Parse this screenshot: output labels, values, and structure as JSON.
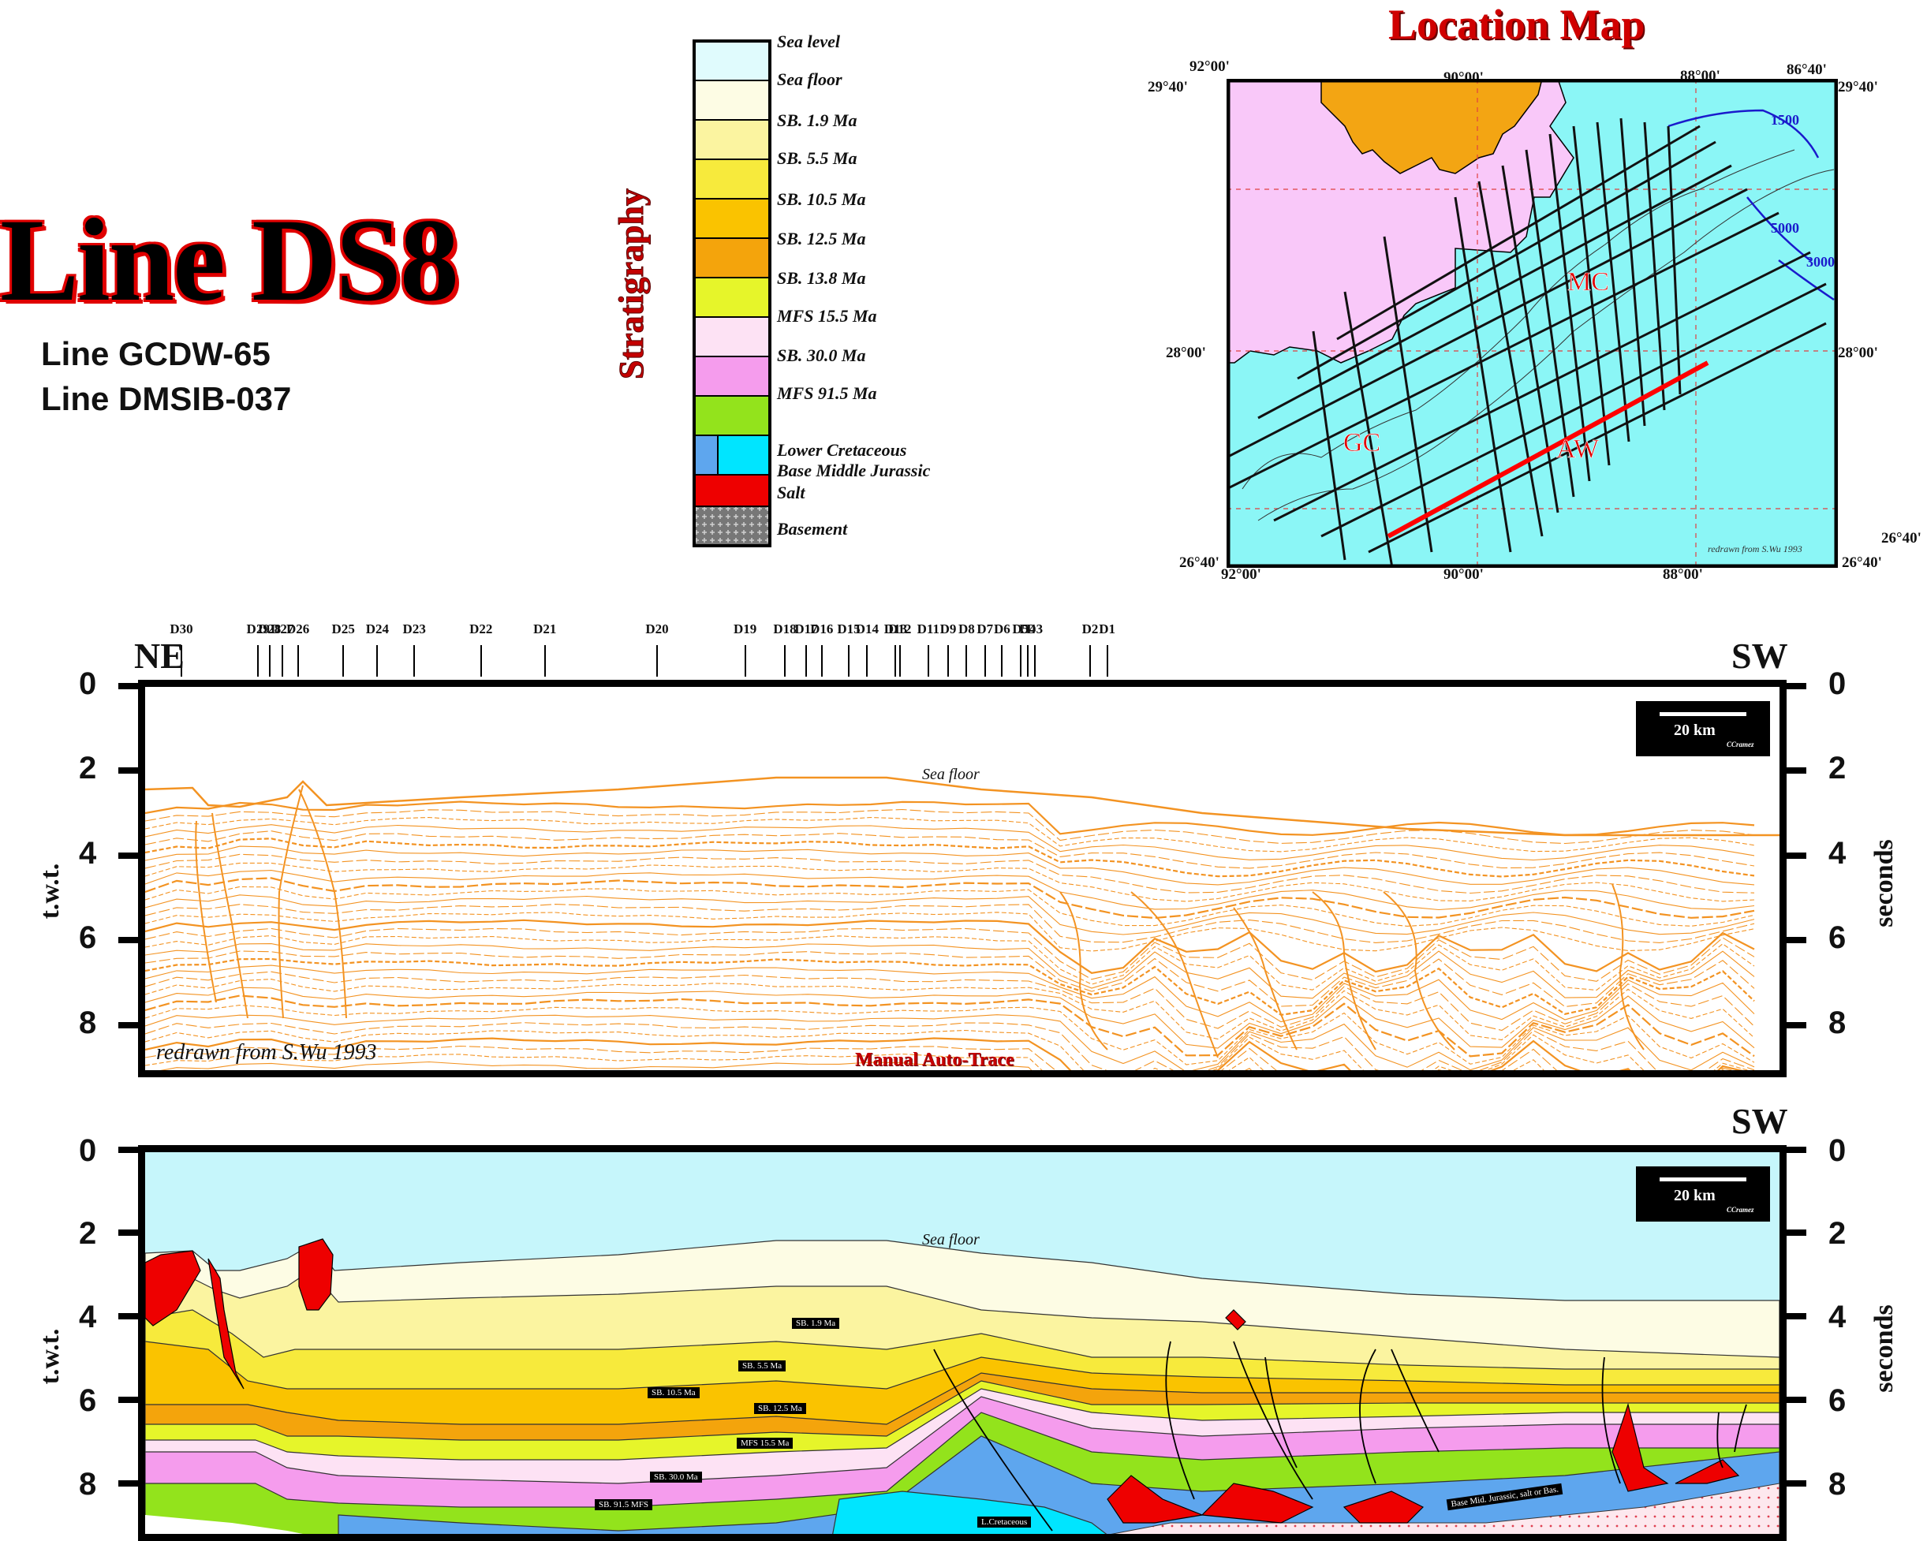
{
  "title": "Line DS8",
  "subtitles": [
    "Line GCDW-65",
    "Line DMSIB-037"
  ],
  "stratigraphy": {
    "heading": "Stratigraphy",
    "items": [
      {
        "label": "Sea level",
        "color": "#e0fbfd"
      },
      {
        "label": "Sea floor",
        "color": "#fdfce4"
      },
      {
        "label": "SB. 1.9 Ma",
        "color": "#fbf4a0"
      },
      {
        "label": "SB. 5.5 Ma",
        "color": "#f7ea3c"
      },
      {
        "label": "SB. 10.5 Ma",
        "color": "#fac300"
      },
      {
        "label": "SB. 12.5 Ma",
        "color": "#f4a40c"
      },
      {
        "label": "SB. 13.8 Ma",
        "color": "#e6f52a"
      },
      {
        "label": "MFS 15.5 Ma",
        "color": "#fde2f4"
      },
      {
        "label": "SB. 30.0 Ma",
        "color": "#f59ced"
      },
      {
        "label": "MFS 91.5 Ma",
        "color": "#93e31c"
      },
      {
        "label": "Lower Cretaceous",
        "color": "#5ea6ee"
      },
      {
        "label": "Base Middle Jurassic",
        "color": "#00e5ff"
      },
      {
        "label": "Salt",
        "color": "#ee0000"
      },
      {
        "label": "Basement",
        "color": "#888888"
      }
    ]
  },
  "location_map": {
    "title": "Location Map",
    "coords": {
      "top_left_lon": "92°00'",
      "top_mid_lon": "90°00'",
      "top_right_lon": "88°00'",
      "top_far_lon": "86°40'",
      "top_left_lat": "29°40'",
      "top_right_lat": "29°40'",
      "mid_left_lat": "28°00'",
      "mid_right_lat": "28°00'",
      "bottom_left_lat": "26°40'",
      "bottom_right_lat": "26°40'",
      "far_right_lat": "26°40'",
      "bottom_left_lon": "92°00'",
      "bottom_mid_lon": "90°00'",
      "bottom_right_lon": "88°00'"
    },
    "region_labels": [
      "MC",
      "GC",
      "AW"
    ],
    "contours": [
      "1500",
      "3000",
      "5000"
    ],
    "credit": "redrawn from S.Wu 1993",
    "colors": {
      "land": "#f9c8f9",
      "sea": "#88f6f6",
      "river_delta": "#f3a513",
      "selected_line": "#ff0000"
    }
  },
  "wells": {
    "labels": [
      "D30",
      "D29",
      "D28",
      "D27",
      "D26",
      "D25",
      "D24",
      "D23",
      "D22",
      "D21",
      "D20",
      "D19",
      "D18",
      "D17",
      "D16",
      "D15",
      "D14",
      "D13",
      "D12",
      "D11",
      "D9",
      "D8",
      "D7",
      "D6",
      "D5",
      "D4",
      "D3",
      "D2",
      "D1"
    ],
    "fractions": [
      0.0,
      0.054,
      0.062,
      0.071,
      0.082,
      0.114,
      0.138,
      0.164,
      0.211,
      0.256,
      0.335,
      0.397,
      0.425,
      0.44,
      0.451,
      0.47,
      0.483,
      0.503,
      0.506,
      0.526,
      0.54,
      0.553,
      0.566,
      0.578,
      0.591,
      0.596,
      0.601,
      0.64,
      0.652
    ]
  },
  "panel_top": {
    "direction_left": "NE",
    "direction_right": "SW",
    "y_axis_label_left": "t.w.t.",
    "y_axis_label_right": "seconds",
    "ticks": [
      "0",
      "2",
      "4",
      "6",
      "8"
    ],
    "scale": "20 km",
    "scale_credit": "CCramez",
    "sea_floor_label": "Sea floor",
    "credit": "redrawn from S.Wu 1993",
    "method": "Manual Auto-Trace",
    "trace_color": "#f39322"
  },
  "panel_bottom": {
    "direction_right": "SW",
    "y_axis_label_left": "t.w.t.",
    "y_axis_label_right": "seconds",
    "ticks": [
      "0",
      "2",
      "4",
      "6",
      "8"
    ],
    "scale": "20 km",
    "scale_credit": "CCramez",
    "sea_floor_label": "Sea floor",
    "horizon_labels": [
      "SB. 1.9 Ma",
      "SB. 5.5 Ma",
      "SB. 10.5 Ma",
      "SB. 12.5 Ma",
      "MFS 15.5 Ma",
      "SB. 30.0 Ma",
      "SB. 91.5 MFS",
      "L.Cretaceous",
      "Base Mid. Jurassic, salt or Bas."
    ]
  }
}
